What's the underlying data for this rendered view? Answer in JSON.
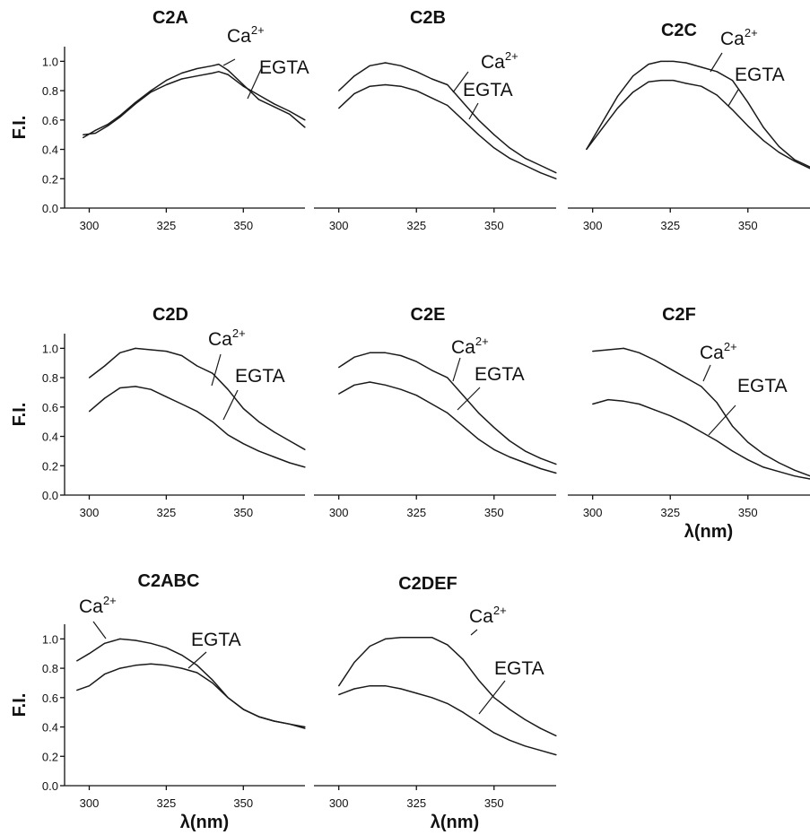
{
  "chart_data": [
    {
      "type": "line",
      "title": "C2A",
      "ylabel": "F.I.",
      "xlabel": "",
      "xlim": [
        292,
        370
      ],
      "ylim": [
        0,
        1.1
      ],
      "xticks": [
        "300",
        "325",
        "350"
      ],
      "yticks": [
        "0.0",
        "0.2",
        "0.4",
        "0.6",
        "0.8",
        "1.0"
      ],
      "series": [
        {
          "name": "Ca2+",
          "x": [
            298,
            302,
            306,
            310,
            315,
            320,
            325,
            330,
            335,
            340,
            342,
            345,
            350,
            355,
            360,
            365,
            370
          ],
          "y": [
            0.48,
            0.53,
            0.57,
            0.63,
            0.72,
            0.8,
            0.87,
            0.92,
            0.95,
            0.97,
            0.98,
            0.94,
            0.84,
            0.74,
            0.69,
            0.64,
            0.55
          ]
        },
        {
          "name": "EGTA",
          "x": [
            298,
            302,
            306,
            310,
            315,
            320,
            325,
            330,
            335,
            340,
            342,
            345,
            350,
            355,
            360,
            365,
            370
          ],
          "y": [
            0.5,
            0.51,
            0.56,
            0.62,
            0.71,
            0.79,
            0.84,
            0.88,
            0.9,
            0.92,
            0.93,
            0.91,
            0.83,
            0.77,
            0.71,
            0.66,
            0.6
          ]
        }
      ]
    },
    {
      "type": "line",
      "title": "C2B",
      "ylabel": "",
      "xlabel": "",
      "xlim": [
        292,
        370
      ],
      "ylim": [
        0,
        1.1
      ],
      "xticks": [
        "300",
        "325",
        "350"
      ],
      "yticks": [],
      "series": [
        {
          "name": "Ca2+",
          "x": [
            300,
            305,
            310,
            315,
            320,
            325,
            330,
            335,
            340,
            345,
            350,
            355,
            360,
            365,
            370
          ],
          "y": [
            0.8,
            0.9,
            0.97,
            0.99,
            0.97,
            0.93,
            0.88,
            0.84,
            0.72,
            0.6,
            0.5,
            0.41,
            0.34,
            0.29,
            0.24
          ]
        },
        {
          "name": "EGTA",
          "x": [
            300,
            305,
            310,
            315,
            320,
            325,
            330,
            335,
            340,
            345,
            350,
            355,
            360,
            365,
            370
          ],
          "y": [
            0.68,
            0.78,
            0.83,
            0.84,
            0.83,
            0.8,
            0.75,
            0.7,
            0.6,
            0.5,
            0.41,
            0.34,
            0.29,
            0.24,
            0.2
          ]
        }
      ]
    },
    {
      "type": "line",
      "title": "C2C",
      "ylabel": "",
      "xlabel": "",
      "xlim": [
        292,
        370
      ],
      "ylim": [
        0,
        1.1
      ],
      "xticks": [
        "300",
        "325",
        "350"
      ],
      "yticks": [],
      "series": [
        {
          "name": "Ca2+",
          "x": [
            298,
            303,
            308,
            313,
            318,
            322,
            326,
            330,
            335,
            340,
            345,
            350,
            355,
            360,
            365,
            370
          ],
          "y": [
            0.4,
            0.58,
            0.76,
            0.9,
            0.98,
            1.0,
            1.0,
            0.99,
            0.96,
            0.93,
            0.87,
            0.72,
            0.55,
            0.42,
            0.33,
            0.28
          ]
        },
        {
          "name": "EGTA",
          "x": [
            298,
            303,
            308,
            313,
            318,
            322,
            326,
            330,
            335,
            340,
            345,
            350,
            355,
            360,
            365,
            370
          ],
          "y": [
            0.4,
            0.54,
            0.68,
            0.79,
            0.86,
            0.87,
            0.87,
            0.85,
            0.83,
            0.77,
            0.67,
            0.56,
            0.46,
            0.38,
            0.32,
            0.27
          ]
        }
      ]
    },
    {
      "type": "line",
      "title": "C2D",
      "ylabel": "F.I.",
      "xlabel": "",
      "xlim": [
        292,
        370
      ],
      "ylim": [
        0,
        1.1
      ],
      "xticks": [
        "300",
        "325",
        "350"
      ],
      "yticks": [
        "0.0",
        "0.2",
        "0.4",
        "0.6",
        "0.8",
        "1.0"
      ],
      "series": [
        {
          "name": "Ca2+",
          "x": [
            300,
            305,
            310,
            315,
            320,
            325,
            330,
            335,
            340,
            345,
            350,
            355,
            360,
            365,
            370
          ],
          "y": [
            0.8,
            0.88,
            0.97,
            1.0,
            0.99,
            0.98,
            0.95,
            0.88,
            0.83,
            0.72,
            0.59,
            0.5,
            0.43,
            0.37,
            0.31
          ]
        },
        {
          "name": "EGTA",
          "x": [
            300,
            305,
            310,
            315,
            320,
            325,
            330,
            335,
            340,
            345,
            350,
            355,
            360,
            365,
            370
          ],
          "y": [
            0.57,
            0.66,
            0.73,
            0.74,
            0.72,
            0.67,
            0.62,
            0.57,
            0.5,
            0.41,
            0.35,
            0.3,
            0.26,
            0.22,
            0.19
          ]
        }
      ]
    },
    {
      "type": "line",
      "title": "C2E",
      "ylabel": "",
      "xlabel": "",
      "xlim": [
        292,
        370
      ],
      "ylim": [
        0,
        1.1
      ],
      "xticks": [
        "300",
        "325",
        "350"
      ],
      "yticks": [],
      "series": [
        {
          "name": "Ca2+",
          "x": [
            300,
            305,
            310,
            315,
            320,
            325,
            330,
            335,
            340,
            345,
            350,
            355,
            360,
            365,
            370
          ],
          "y": [
            0.87,
            0.94,
            0.97,
            0.97,
            0.95,
            0.91,
            0.85,
            0.8,
            0.68,
            0.56,
            0.46,
            0.37,
            0.3,
            0.25,
            0.21
          ]
        },
        {
          "name": "EGTA",
          "x": [
            300,
            305,
            310,
            315,
            320,
            325,
            330,
            335,
            340,
            345,
            350,
            355,
            360,
            365,
            370
          ],
          "y": [
            0.69,
            0.75,
            0.77,
            0.75,
            0.72,
            0.68,
            0.62,
            0.56,
            0.47,
            0.38,
            0.31,
            0.26,
            0.22,
            0.18,
            0.15
          ]
        }
      ]
    },
    {
      "type": "line",
      "title": "C2F",
      "ylabel": "",
      "xlabel": "λ(nm)",
      "xlim": [
        292,
        370
      ],
      "ylim": [
        0,
        1.1
      ],
      "xticks": [
        "300",
        "325",
        "350"
      ],
      "yticks": [],
      "series": [
        {
          "name": "Ca2+",
          "x": [
            300,
            305,
            310,
            315,
            320,
            325,
            330,
            335,
            340,
            345,
            350,
            355,
            360,
            365,
            370
          ],
          "y": [
            0.98,
            0.99,
            1.0,
            0.97,
            0.92,
            0.86,
            0.8,
            0.74,
            0.63,
            0.47,
            0.36,
            0.28,
            0.22,
            0.17,
            0.13
          ]
        },
        {
          "name": "EGTA",
          "x": [
            300,
            305,
            310,
            315,
            320,
            325,
            330,
            335,
            340,
            345,
            350,
            355,
            360,
            365,
            370
          ],
          "y": [
            0.62,
            0.65,
            0.64,
            0.62,
            0.58,
            0.54,
            0.49,
            0.43,
            0.37,
            0.3,
            0.24,
            0.19,
            0.16,
            0.13,
            0.11
          ]
        }
      ]
    },
    {
      "type": "line",
      "title": "C2ABC",
      "ylabel": "F.I.",
      "xlabel": "λ(nm)",
      "xlim": [
        292,
        370
      ],
      "ylim": [
        0,
        1.1
      ],
      "xticks": [
        "300",
        "325",
        "350"
      ],
      "yticks": [
        "0.0",
        "0.2",
        "0.4",
        "0.6",
        "0.8",
        "1.0"
      ],
      "series": [
        {
          "name": "Ca2+",
          "x": [
            296,
            300,
            305,
            310,
            315,
            320,
            325,
            330,
            335,
            340,
            345,
            350,
            355,
            360,
            365,
            370
          ],
          "y": [
            0.85,
            0.9,
            0.97,
            1.0,
            0.99,
            0.97,
            0.94,
            0.89,
            0.82,
            0.72,
            0.6,
            0.52,
            0.47,
            0.44,
            0.42,
            0.4
          ]
        },
        {
          "name": "EGTA",
          "x": [
            296,
            300,
            305,
            310,
            315,
            320,
            325,
            330,
            335,
            340,
            345,
            350,
            355,
            360,
            365,
            370
          ],
          "y": [
            0.65,
            0.68,
            0.76,
            0.8,
            0.82,
            0.83,
            0.82,
            0.8,
            0.77,
            0.7,
            0.6,
            0.52,
            0.47,
            0.44,
            0.42,
            0.39
          ]
        }
      ]
    },
    {
      "type": "line",
      "title": "C2DEF",
      "ylabel": "",
      "xlabel": "λ(nm)",
      "xlim": [
        292,
        370
      ],
      "ylim": [
        0,
        1.1
      ],
      "xticks": [
        "300",
        "325",
        "350"
      ],
      "yticks": [],
      "series": [
        {
          "name": "Ca2+",
          "x": [
            300,
            305,
            310,
            315,
            320,
            325,
            330,
            335,
            340,
            345,
            350,
            355,
            360,
            365,
            370
          ],
          "y": [
            0.68,
            0.84,
            0.95,
            1.0,
            1.01,
            1.01,
            1.01,
            0.96,
            0.86,
            0.72,
            0.6,
            0.52,
            0.45,
            0.39,
            0.34
          ]
        },
        {
          "name": "EGTA",
          "x": [
            300,
            305,
            310,
            315,
            320,
            325,
            330,
            335,
            340,
            345,
            350,
            355,
            360,
            365,
            370
          ],
          "y": [
            0.62,
            0.66,
            0.68,
            0.68,
            0.66,
            0.63,
            0.6,
            0.56,
            0.5,
            0.43,
            0.36,
            0.31,
            0.27,
            0.24,
            0.21
          ]
        }
      ]
    }
  ],
  "labels": {
    "ca": "Ca",
    "ca_sup": "2+",
    "egta": "EGTA"
  }
}
